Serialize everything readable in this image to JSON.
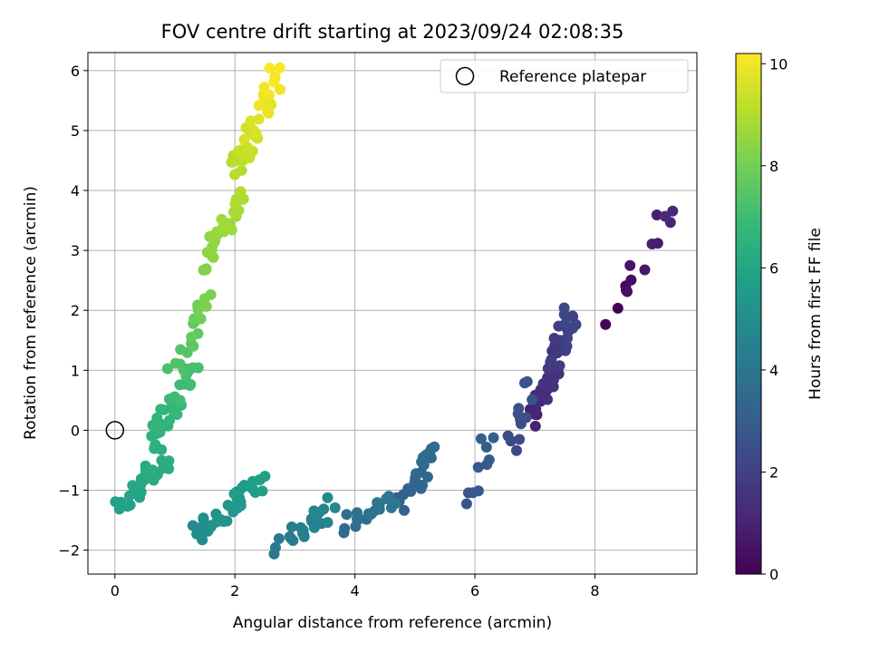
{
  "chart_data": {
    "type": "scatter",
    "title": "FOV centre drift starting at 2023/09/24 02:08:35",
    "xlabel": "Angular distance from reference (arcmin)",
    "ylabel": "Rotation from reference (arcmin)",
    "xlim": [
      -0.45,
      9.7
    ],
    "ylim": [
      -2.4,
      6.3
    ],
    "x_ticks": [
      0,
      2,
      4,
      6,
      8
    ],
    "y_ticks": [
      -2,
      -1,
      0,
      1,
      2,
      3,
      4,
      5,
      6
    ],
    "grid": true,
    "legend": {
      "position": "upper-right",
      "entries": [
        "Reference platepar"
      ]
    },
    "reference_point": {
      "label": "Reference platepar",
      "x": 0,
      "y": 0,
      "marker": "hollow-circle"
    },
    "colorbar": {
      "label": "Hours from first FF file",
      "min": 0,
      "max": 10.2,
      "ticks": [
        0,
        2,
        4,
        6,
        8,
        10
      ],
      "colormap": "viridis",
      "colors": [
        "#440154",
        "#482878",
        "#3e4989",
        "#31688e",
        "#26828e",
        "#1f9e89",
        "#35b779",
        "#6ece58",
        "#b5de2b",
        "#fde725"
      ]
    },
    "segments": [
      {
        "t": [
          0.0,
          1.2
        ],
        "x": [
          8.3,
          9.2
        ],
        "y": [
          1.9,
          3.7
        ],
        "n": 14
      },
      {
        "t": [
          0.9,
          2.2
        ],
        "x": [
          7.0,
          7.6
        ],
        "y": [
          0.2,
          1.9
        ],
        "n": 60
      },
      {
        "t": [
          2.2,
          2.7
        ],
        "x": [
          6.6,
          6.9
        ],
        "y": [
          -0.3,
          0.8
        ],
        "n": 12
      },
      {
        "t": [
          2.7,
          3.1
        ],
        "x": [
          5.9,
          6.3
        ],
        "y": [
          -1.2,
          0.0
        ],
        "n": 10
      },
      {
        "t": [
          3.1,
          3.6
        ],
        "x": [
          4.8,
          5.3
        ],
        "y": [
          -1.2,
          -0.3
        ],
        "n": 22
      },
      {
        "t": [
          3.6,
          4.1
        ],
        "x": [
          3.8,
          4.7
        ],
        "y": [
          -1.6,
          -1.1
        ],
        "n": 18
      },
      {
        "t": [
          4.1,
          4.8
        ],
        "x": [
          2.7,
          3.7
        ],
        "y": [
          -2.0,
          -1.2
        ],
        "n": 24
      },
      {
        "t": [
          4.8,
          5.8
        ],
        "x": [
          1.3,
          2.4
        ],
        "y": [
          -1.8,
          -0.9
        ],
        "n": 40
      },
      {
        "t": [
          5.8,
          6.4
        ],
        "x": [
          0.1,
          0.9
        ],
        "y": [
          -1.3,
          -0.4
        ],
        "n": 28
      },
      {
        "t": [
          6.4,
          7.2
        ],
        "x": [
          0.6,
          1.3
        ],
        "y": [
          -0.2,
          1.0
        ],
        "n": 32
      },
      {
        "t": [
          7.2,
          8.2
        ],
        "x": [
          1.0,
          1.6
        ],
        "y": [
          1.0,
          2.3
        ],
        "n": 20
      },
      {
        "t": [
          8.2,
          9.0
        ],
        "x": [
          1.5,
          2.1
        ],
        "y": [
          2.7,
          4.0
        ],
        "n": 30
      },
      {
        "t": [
          9.0,
          10.2
        ],
        "x": [
          2.0,
          2.7
        ],
        "y": [
          4.3,
          5.9
        ],
        "n": 40
      }
    ]
  }
}
